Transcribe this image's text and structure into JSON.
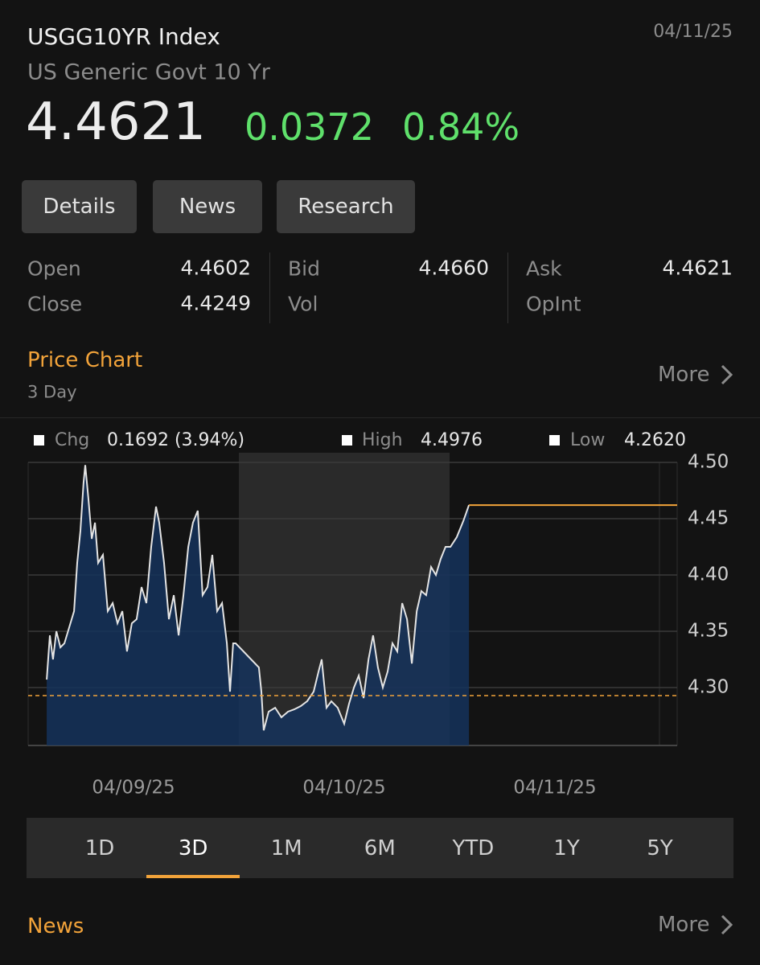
{
  "header": {
    "title": "USGG10YR Index",
    "subtitle": "US Generic Govt 10 Yr",
    "date": "04/11/25",
    "price": "4.4621",
    "change": "0.0372",
    "change_pct": "0.84%"
  },
  "buttons": [
    "Details",
    "News",
    "Research"
  ],
  "stats": [
    [
      {
        "label": "Open",
        "value": "4.4602"
      },
      {
        "label": "Close",
        "value": "4.4249"
      }
    ],
    [
      {
        "label": "Bid",
        "value": "4.4660"
      },
      {
        "label": "Vol"
      }
    ],
    [
      {
        "label": "Ask",
        "value": "4.4621"
      },
      {
        "label": "OpInt"
      }
    ]
  ],
  "price_chart": {
    "title": "Price Chart",
    "subtitle": "3 Day",
    "more": "More",
    "legend": [
      {
        "label": "Chg",
        "value": "0.1692 (3.94%)"
      },
      {
        "label": "High",
        "value": "4.4976"
      },
      {
        "label": "Low",
        "value": "4.2620"
      }
    ]
  },
  "chart_data": {
    "type": "area",
    "color": "#e4e4e4",
    "fill_color": "#15325c",
    "x": [
      0.088,
      0.103,
      0.118,
      0.134,
      0.153,
      0.172,
      0.195,
      0.218,
      0.233,
      0.248,
      0.263,
      0.271,
      0.286,
      0.302,
      0.317,
      0.332,
      0.355,
      0.378,
      0.401,
      0.424,
      0.447,
      0.469,
      0.492,
      0.515,
      0.538,
      0.561,
      0.584,
      0.607,
      0.622,
      0.645,
      0.668,
      0.691,
      0.714,
      0.737,
      0.76,
      0.782,
      0.805,
      0.828,
      0.851,
      0.874,
      0.897,
      0.92,
      0.943,
      0.958,
      0.973,
      0.985,
      1.095,
      1.107,
      1.118,
      1.141,
      1.172,
      1.202,
      1.233,
      1.263,
      1.294,
      1.324,
      1.355,
      1.378,
      1.393,
      1.416,
      1.439,
      1.469,
      1.5,
      1.523,
      1.546,
      1.569,
      1.592,
      1.615,
      1.637,
      1.66,
      1.683,
      1.706,
      1.729,
      1.752,
      1.775,
      1.798,
      1.821,
      1.844,
      1.866,
      1.889,
      1.912,
      1.935,
      1.958,
      1.981,
      2.004,
      2.034,
      2.065,
      2.092
    ],
    "values": [
      4.3071,
      4.3464,
      4.325,
      4.35,
      4.3357,
      4.3393,
      4.3536,
      4.3679,
      4.4107,
      4.4393,
      4.4821,
      4.4976,
      4.4679,
      4.4321,
      4.4464,
      4.4107,
      4.4179,
      4.3679,
      4.375,
      4.3571,
      4.3679,
      4.3321,
      4.3571,
      4.3607,
      4.3893,
      4.375,
      4.425,
      4.4607,
      4.4464,
      4.4107,
      4.3607,
      4.3821,
      4.3464,
      4.3821,
      4.425,
      4.4464,
      4.4571,
      4.3821,
      4.3893,
      4.4179,
      4.3679,
      4.375,
      4.3393,
      4.2964,
      4.3393,
      4.3393,
      4.3179,
      4.2964,
      4.262,
      4.2786,
      4.2821,
      4.2736,
      4.2786,
      4.2807,
      4.2836,
      4.2879,
      4.2964,
      4.3143,
      4.325,
      4.2821,
      4.2879,
      4.2821,
      4.2679,
      4.2857,
      4.3,
      4.3107,
      4.2907,
      4.325,
      4.3464,
      4.3179,
      4.3,
      4.3143,
      4.3393,
      4.3321,
      4.375,
      4.3607,
      4.3214,
      4.3679,
      4.3857,
      4.3821,
      4.4071,
      4.4,
      4.4143,
      4.425,
      4.425,
      4.4336,
      4.4479,
      4.4621
    ],
    "xlim": [
      0,
      3.08
    ],
    "xticks": [
      {
        "value": 0.5,
        "label": "04/09/25"
      },
      {
        "value": 1.5,
        "label": "04/10/25"
      },
      {
        "value": 2.5,
        "label": "04/11/25"
      }
    ],
    "ylim": [
      4.2486,
      4.5
    ],
    "yticks": [
      {
        "value": 4.3,
        "label": "4.30"
      },
      4.35,
      {
        "value": 4.4,
        "label": "4.40"
      },
      4.45,
      {
        "value": 4.5,
        "label": "4.50"
      }
    ],
    "grid": true,
    "shaded_ranges": [
      [
        1,
        2
      ]
    ],
    "reference_line": 4.2929,
    "reference_color": "#f2a33a",
    "last_price_color": "#f2a33a"
  },
  "ranges": {
    "options": [
      "1D",
      "3D",
      "1M",
      "6M",
      "YTD",
      "1Y",
      "5Y"
    ],
    "selected": 1
  },
  "news": {
    "title": "News",
    "more": "More"
  }
}
